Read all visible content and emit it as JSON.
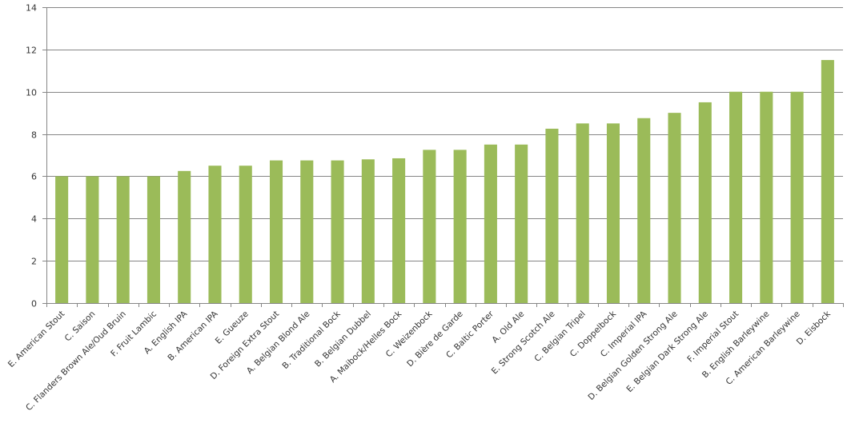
{
  "chart_data": {
    "type": "bar",
    "title": "",
    "xlabel": "",
    "ylabel": "",
    "ylim": [
      0,
      14
    ],
    "yticks": [
      0,
      2,
      4,
      6,
      8,
      10,
      12,
      14
    ],
    "grid": true,
    "legend": null,
    "bar_color": "#9bbb59",
    "gridline_color": "#868686",
    "categories": [
      "E. American Stout",
      "C. Saison",
      "C. Flanders Brown Ale/Oud Bruin",
      "F. Fruit Lambic",
      "A. English IPA",
      "B. American IPA",
      "E. Gueuze",
      "D. Foreign Extra Stout",
      "A. Belgian Blond Ale",
      "B. Traditional Bock",
      "B. Belgian Dubbel",
      "A. Maibock/Helles Bock",
      "C. Weizenbock",
      "D. Bière de Garde",
      "C. Baltic Porter",
      "A. Old Ale",
      "E. Strong Scotch Ale",
      "C. Belgian Tripel",
      "C. Doppelbock",
      "C. Imperial IPA",
      "D. Belgian Golden Strong Ale",
      "E. Belgian Dark Strong Ale",
      "F. Imperial Stout",
      "B. English Barleywine",
      "C. American Barleywine",
      "D. Eisbock"
    ],
    "values": [
      6,
      6,
      6,
      6,
      6.25,
      6.5,
      6.5,
      6.75,
      6.75,
      6.75,
      6.8,
      6.85,
      7.25,
      7.25,
      7.5,
      7.5,
      8.25,
      8.5,
      8.5,
      8.75,
      9,
      9.5,
      10,
      10,
      10,
      11.5
    ]
  }
}
